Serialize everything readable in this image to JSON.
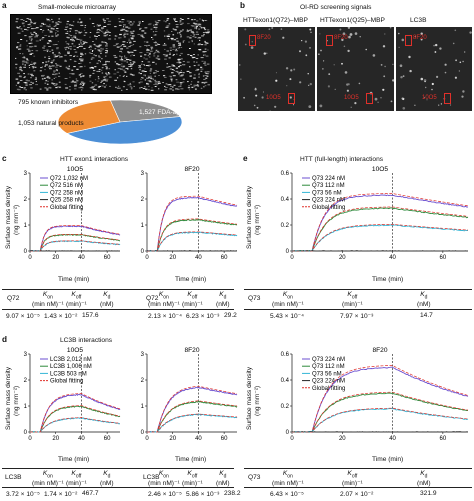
{
  "panel_a": {
    "letter": "a",
    "title": "Small-molecule microarray",
    "pie_labels": [
      "795 known inhibitors",
      "1,527 FDA-approved drugs",
      "1,053 natural products"
    ],
    "pie_values": [
      795,
      1527,
      1053
    ],
    "pie_colors": [
      "#8e8e8e",
      "#4c8fd6",
      "#ee8b34"
    ]
  },
  "panel_b": {
    "letter": "b",
    "title": "OI-RD screening signals",
    "headers": [
      "HTTexon1(Q72)–MBP",
      "HTTexon1(Q25)–MBP",
      "LC3B"
    ],
    "spot_top": "8F20",
    "spot_bottom": "10O5"
  },
  "panel_c": {
    "letter": "c",
    "title": "HTT exon1 interactions",
    "ylabel": "Surface mass density",
    "yunit": "(ng mm⁻²)",
    "xlabel": "Time (min)",
    "row_label": "Q72"
  },
  "panel_d": {
    "letter": "d",
    "title": "LC3B interactions",
    "ylabel": "Surface mass density",
    "yunit": "(ng mm⁻²)",
    "xlabel": "Time (min)",
    "row_label": "LC3B"
  },
  "panel_e": {
    "letter": "e",
    "title": "HTT (full-length) interactions",
    "ylabel": "Surface mass density",
    "yunit": "(ng mm⁻²)",
    "xlabel": "Time (min)",
    "row_label": "Q73"
  },
  "kinetics_headers": {
    "kon": "K",
    "kon_sub": "on",
    "kon_unit": "(min nM)⁻¹",
    "koff": "K",
    "koff_sub": "off",
    "koff_unit": "(min)⁻¹",
    "kd": "K",
    "kd_sub": "d",
    "kd_unit": "(nM)"
  },
  "kinetics": {
    "c1": [
      "9.07 × 10⁻⁵",
      "1.43 × 10⁻²",
      "157.6"
    ],
    "c2": [
      "2.13 × 10⁻⁴",
      "6.23 × 10⁻³",
      "29.2"
    ],
    "e": [
      "5.43 × 10⁻⁴",
      "7.97 × 10⁻³",
      "14.7"
    ],
    "d1": [
      "3.72 × 10⁻⁵",
      "1.74 × 10⁻²",
      "467.7"
    ],
    "d2": [
      "2.46 × 10⁻⁵",
      "5.86 × 10⁻³",
      "238.2"
    ],
    "e2": [
      "6.43 × 10⁻⁵",
      "2.07 × 10⁻²",
      "321.9"
    ]
  },
  "chart_data": [
    {
      "id": "c1",
      "type": "line",
      "title": "10O5",
      "xlabel": "Time (min)",
      "ylabel": "Surface mass density (ng mm⁻²)",
      "xlim": [
        0,
        70
      ],
      "ylim": [
        0,
        3
      ],
      "xticks": [
        0,
        20,
        40,
        60
      ],
      "yticks": [
        0,
        1,
        2,
        3
      ],
      "dashed_line_x": 40,
      "t_on": 8,
      "legend": [
        "Q72 1,032 nM",
        "Q72 516 nM",
        "Q72 258 nM",
        "Q25 258 nM",
        "Global fitting"
      ],
      "series": [
        {
          "name": "Q72 1,032 nM",
          "color": "#6b4fd0",
          "plateau": 0.95,
          "k_on": 0.3,
          "k_off": 0.014
        },
        {
          "name": "Q72 516 nM",
          "color": "#2e8a3c",
          "plateau": 0.62,
          "k_on": 0.28,
          "k_off": 0.014
        },
        {
          "name": "Q72 258 nM",
          "color": "#33b6d6",
          "plateau": 0.38,
          "k_on": 0.25,
          "k_off": 0.014
        },
        {
          "name": "Q25 258 nM",
          "color": "#222222",
          "plateau": 0.0,
          "k_on": 0.2,
          "k_off": 0.01
        }
      ]
    },
    {
      "id": "c2",
      "type": "line",
      "title": "8F20",
      "xlim": [
        0,
        70
      ],
      "ylim": [
        0,
        3
      ],
      "xticks": [
        0,
        20,
        40,
        60
      ],
      "yticks": [
        0,
        1,
        2,
        3
      ],
      "dashed_line_x": 40,
      "t_on": 8,
      "series": [
        {
          "color": "#6b4fd0",
          "plateau": 2.05,
          "k_on": 0.22,
          "k_off": 0.006
        },
        {
          "color": "#2e8a3c",
          "plateau": 1.2,
          "k_on": 0.2,
          "k_off": 0.006
        },
        {
          "color": "#33b6d6",
          "plateau": 0.72,
          "k_on": 0.18,
          "k_off": 0.006
        },
        {
          "color": "#222222",
          "plateau": 0.0,
          "k_on": 0.2,
          "k_off": 0.01
        }
      ]
    },
    {
      "id": "e1",
      "type": "line",
      "title": "10O5",
      "xlim": [
        0,
        70
      ],
      "ylim": [
        0,
        0.6
      ],
      "xticks": [
        0,
        20,
        40,
        60
      ],
      "yticks": [
        0,
        0.2,
        0.4,
        0.6
      ],
      "dashed_line_x": 40,
      "t_on": 8,
      "legend": [
        "Q73 224 nM",
        "Q73 112 nM",
        "Q73 56 nM",
        "Q23 224 nM",
        "Global fitting"
      ],
      "series": [
        {
          "name": "Q73 224 nM",
          "color": "#6b4fd0",
          "plateau": 0.43,
          "k_on": 0.2,
          "k_off": 0.008
        },
        {
          "name": "Q73 112 nM",
          "color": "#2e8a3c",
          "plateau": 0.33,
          "k_on": 0.18,
          "k_off": 0.008
        },
        {
          "name": "Q73 56 nM",
          "color": "#33b6d6",
          "plateau": 0.2,
          "k_on": 0.16,
          "k_off": 0.008
        },
        {
          "name": "Q23 224 nM",
          "color": "#222222",
          "plateau": 0.0,
          "k_on": 0.2,
          "k_off": 0.01
        }
      ]
    },
    {
      "id": "d1",
      "type": "line",
      "title": "10O5",
      "xlim": [
        0,
        70
      ],
      "ylim": [
        0,
        3
      ],
      "xticks": [
        0,
        20,
        40,
        60
      ],
      "yticks": [
        0,
        1,
        2,
        3
      ],
      "dashed_line_x": 40,
      "t_on": 8,
      "legend": [
        "LC3B 2,012 nM",
        "LC3B 1,006 nM",
        "LC3B 503 nM",
        "Global fitting"
      ],
      "series": [
        {
          "name": "LC3B 2,012 nM",
          "color": "#6b4fd0",
          "plateau": 1.45,
          "k_on": 0.15,
          "k_off": 0.017
        },
        {
          "name": "LC3B 1,006 nM",
          "color": "#2e8a3c",
          "plateau": 1.0,
          "k_on": 0.14,
          "k_off": 0.017
        },
        {
          "name": "LC3B 503 nM",
          "color": "#33b6d6",
          "plateau": 0.55,
          "k_on": 0.12,
          "k_off": 0.017
        }
      ]
    },
    {
      "id": "d2",
      "type": "line",
      "title": "8F20",
      "xlim": [
        0,
        70
      ],
      "ylim": [
        0,
        3
      ],
      "xticks": [
        0,
        20,
        40,
        60
      ],
      "yticks": [
        0,
        1,
        2,
        3
      ],
      "dashed_line_x": 40,
      "t_on": 8,
      "series": [
        {
          "color": "#6b4fd0",
          "plateau": 1.75,
          "k_on": 0.12,
          "k_off": 0.006
        },
        {
          "color": "#2e8a3c",
          "plateau": 1.2,
          "k_on": 0.11,
          "k_off": 0.006
        },
        {
          "color": "#33b6d6",
          "plateau": 0.7,
          "k_on": 0.1,
          "k_off": 0.006
        }
      ]
    },
    {
      "id": "e2",
      "type": "line",
      "title": "8F20",
      "xlim": [
        0,
        70
      ],
      "ylim": [
        0,
        0.6
      ],
      "xticks": [
        0,
        20,
        40,
        60
      ],
      "yticks": [
        0,
        0.2,
        0.4,
        0.6
      ],
      "dashed_line_x": 40,
      "t_on": 8,
      "legend": [
        "Q73 224 nM",
        "Q73 112 nM",
        "Q73 56 nM",
        "Q23 224 nM",
        "Global fitting"
      ],
      "series": [
        {
          "name": "Q73 224 nM",
          "color": "#6b4fd0",
          "plateau": 0.5,
          "k_on": 0.16,
          "k_off": 0.02
        },
        {
          "name": "Q73 112 nM",
          "color": "#2e8a3c",
          "plateau": 0.3,
          "k_on": 0.15,
          "k_off": 0.02
        },
        {
          "name": "Q73 56 nM",
          "color": "#33b6d6",
          "plateau": 0.18,
          "k_on": 0.14,
          "k_off": 0.02
        },
        {
          "name": "Q23 224 nM",
          "color": "#222222",
          "plateau": 0.0,
          "k_on": 0.2,
          "k_off": 0.01
        }
      ]
    }
  ]
}
